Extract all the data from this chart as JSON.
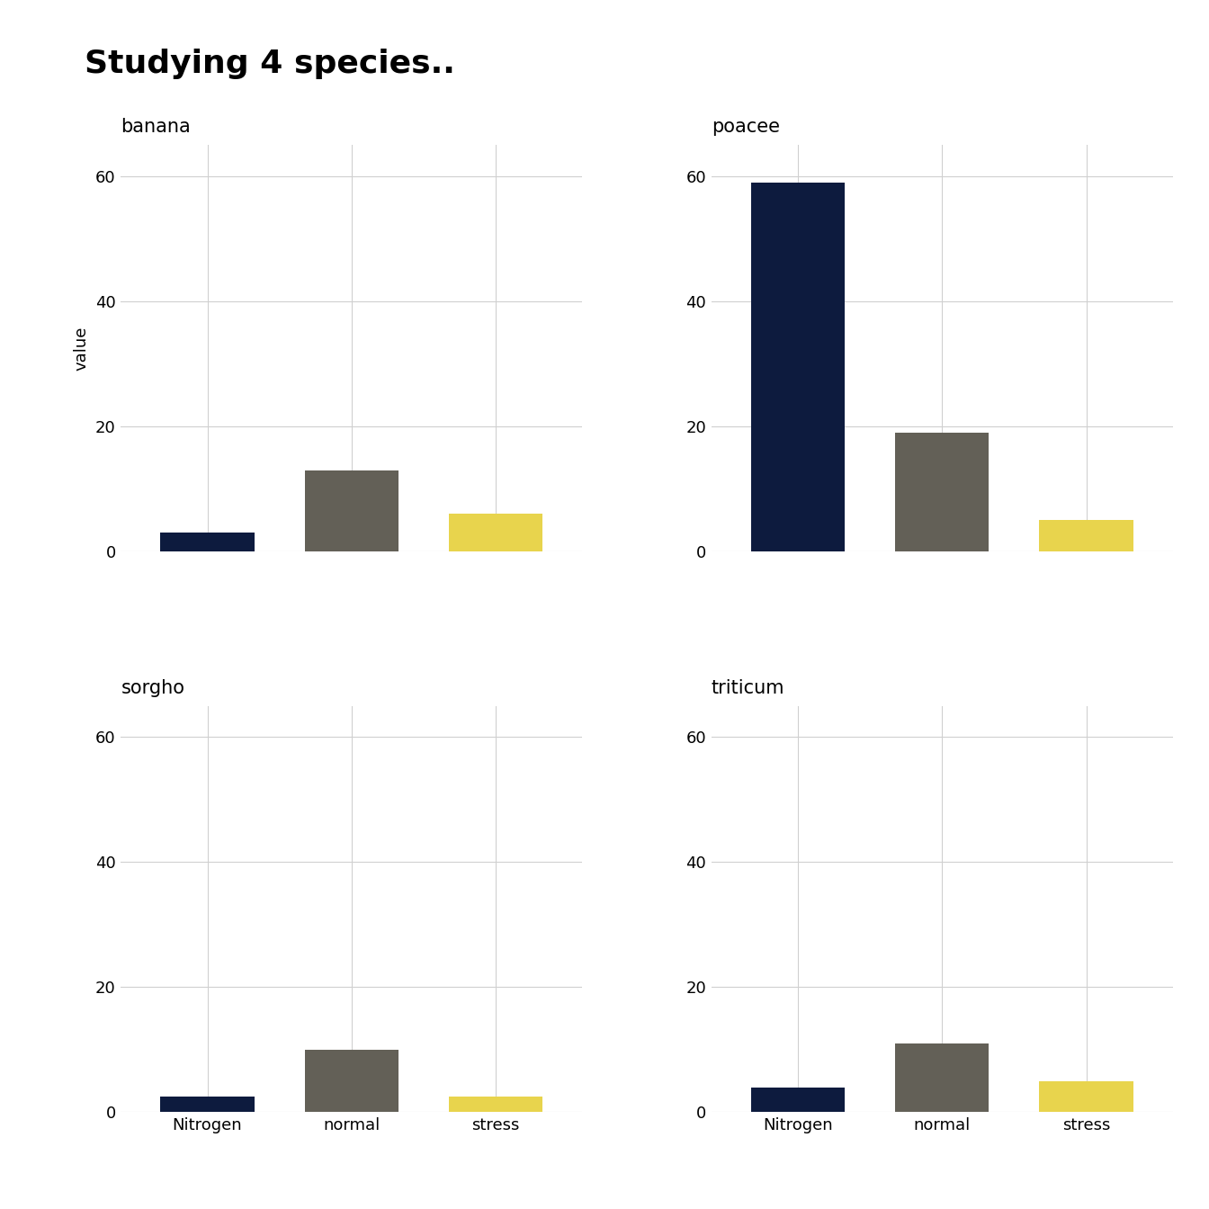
{
  "title": "Studying 4 species..",
  "subplots": [
    {
      "species": "banana",
      "categories": [
        "Nitrogen",
        "normal",
        "stress"
      ],
      "values": [
        3,
        13,
        6
      ],
      "colors": [
        "#0d1b3e",
        "#636057",
        "#e8d44d"
      ]
    },
    {
      "species": "poacee",
      "categories": [
        "Nitrogen",
        "normal",
        "stress"
      ],
      "values": [
        59,
        19,
        5
      ],
      "colors": [
        "#0d1b3e",
        "#636057",
        "#e8d44d"
      ]
    },
    {
      "species": "sorgho",
      "categories": [
        "Nitrogen",
        "normal",
        "stress"
      ],
      "values": [
        2.5,
        10,
        2.5
      ],
      "colors": [
        "#0d1b3e",
        "#636057",
        "#e8d44d"
      ]
    },
    {
      "species": "triticum",
      "categories": [
        "Nitrogen",
        "normal",
        "stress"
      ],
      "values": [
        4,
        11,
        5
      ],
      "colors": [
        "#0d1b3e",
        "#636057",
        "#e8d44d"
      ]
    }
  ],
  "ylabel": "value",
  "ylim": [
    0,
    65
  ],
  "yticks": [
    0,
    20,
    40,
    60
  ],
  "ytick_labels": [
    "0",
    "20",
    "40",
    "60"
  ],
  "background_color": "#ffffff",
  "grid_color": "#d0d0d0",
  "title_fontsize": 26,
  "label_fontsize": 13,
  "tick_fontsize": 13,
  "subplot_label_fontsize": 15,
  "bar_width": 0.65
}
